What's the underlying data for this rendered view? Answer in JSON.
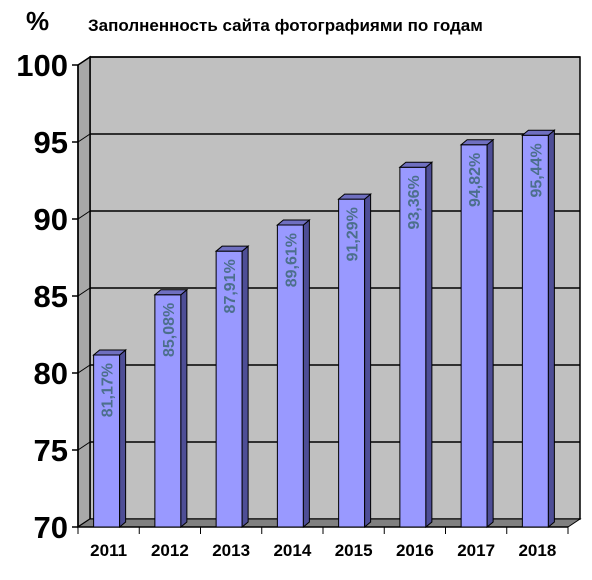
{
  "chart_data": {
    "type": "bar",
    "title": "Заполненность сайта фотографиями по годам",
    "ylabel": "%",
    "xlabel": "",
    "categories": [
      "2011",
      "2012",
      "2013",
      "2014",
      "2015",
      "2016",
      "2017",
      "2018"
    ],
    "values": [
      81.17,
      85.08,
      87.91,
      89.61,
      91.29,
      93.36,
      94.82,
      95.44
    ],
    "data_labels": [
      "81,17%",
      "85,08%",
      "87,91%",
      "89,61%",
      "91,29%",
      "93,36%",
      "94,82%",
      "95,44%"
    ],
    "ylim": [
      70,
      100
    ],
    "yticks": [
      "70",
      "75",
      "80",
      "85",
      "90",
      "95",
      "100"
    ],
    "grid": true,
    "colors": {
      "bar_front": "#9999ff",
      "bar_side": "#4e4e96",
      "bar_top": "#6f6fc0",
      "plot_back": "#c0c0c0",
      "plot_floor": "#808080",
      "label_text": "#4c6f8c"
    }
  }
}
